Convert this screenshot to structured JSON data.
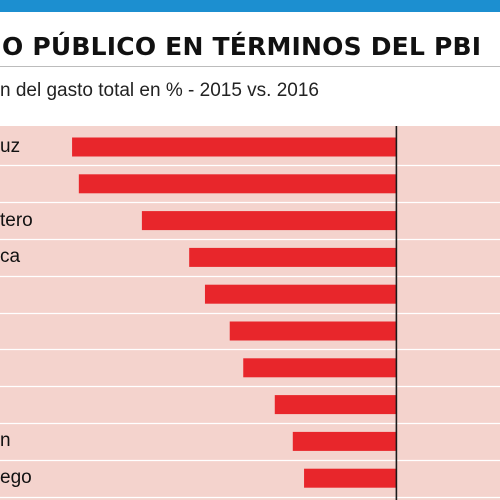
{
  "title": "O PÚBLICO EN TÉRMINOS DEL PBI",
  "subtitle": "n del gasto total en % - 2015 vs. 2016",
  "colors": {
    "top_band": "#1c8fd0",
    "plot_background": "#f4d3cd",
    "bar": "#e8262b",
    "gridline": "#ffffff",
    "zero_axis": "#1a1a1a"
  },
  "chart_data": {
    "type": "bar",
    "orientation": "horizontal",
    "categories": [
      "uz",
      "",
      "tero",
      "ca",
      "",
      "",
      "",
      "",
      "n",
      "ego"
    ],
    "values": [
      -14.4,
      -14.1,
      -11.3,
      -9.2,
      -8.5,
      -7.4,
      -6.8,
      -5.4,
      -4.6,
      -4.1
    ],
    "xlim": [
      -17.6,
      4.6
    ],
    "grid": true,
    "legend": "none"
  }
}
